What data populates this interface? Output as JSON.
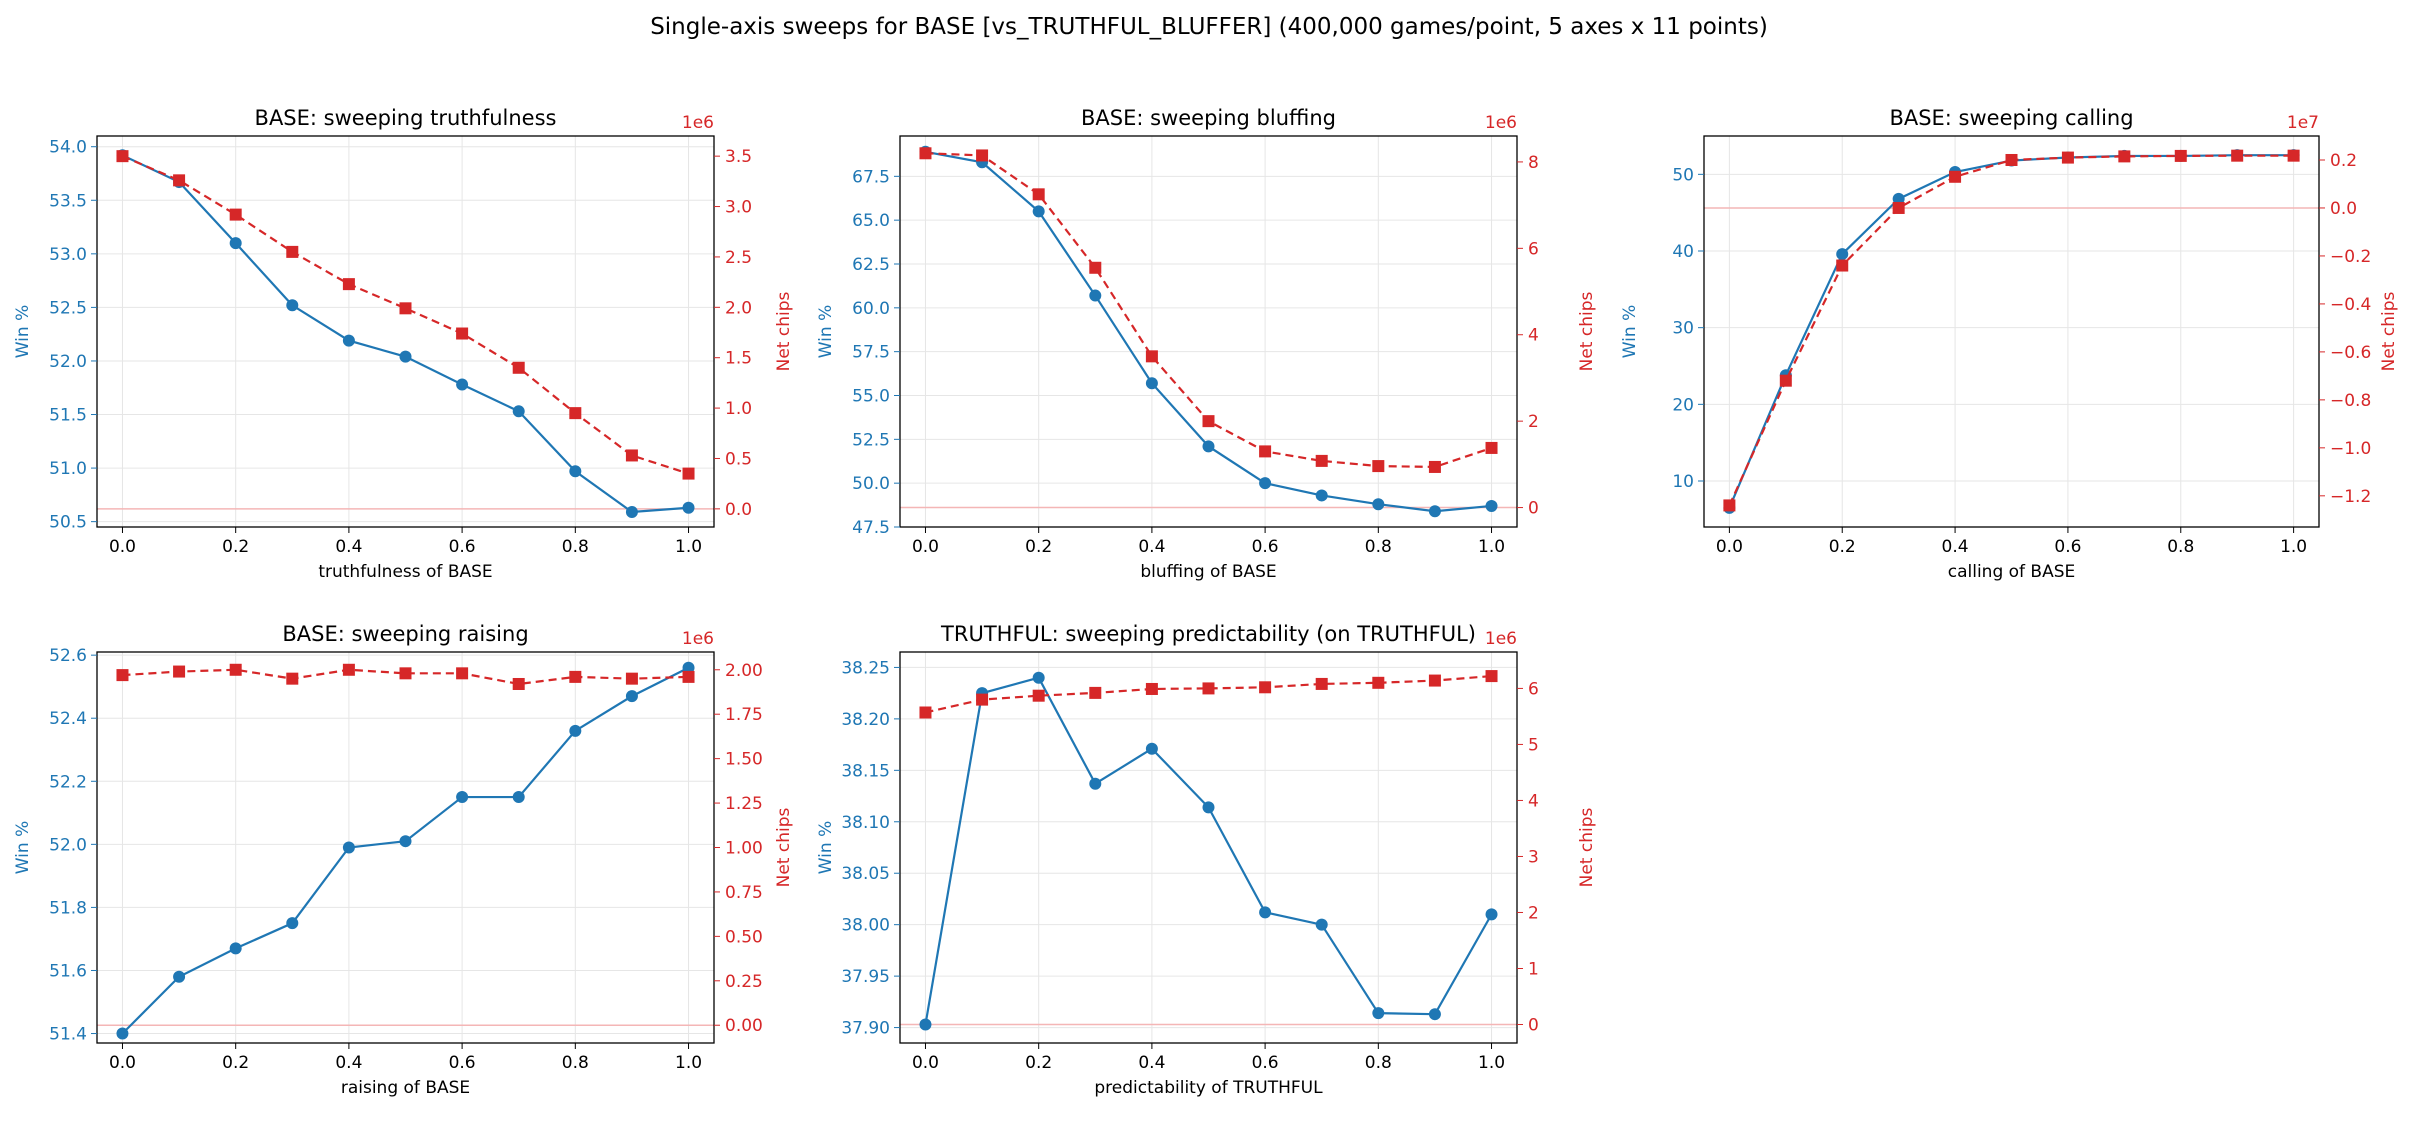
{
  "suptitle": "Single-axis sweeps for BASE  [vs_TRUTHFUL_BLUFFER]  (400,000 games/point, 5 axes x 11 points)",
  "colors": {
    "win": "#1f77b4",
    "chips": "#d62728",
    "zero_line": "#f4b6b6",
    "grid": "#e6e6e6"
  },
  "chart_data": [
    {
      "type": "line",
      "title": "BASE: sweeping truthfulness",
      "xlabel": "truthfulness of BASE",
      "ylabel_left": "Win %",
      "ylabel_right": "Net chips",
      "right_offset": "1e6",
      "x": [
        0.0,
        0.1,
        0.2,
        0.3,
        0.4,
        0.5,
        0.6,
        0.7,
        0.8,
        0.9,
        1.0
      ],
      "x_ticks": [
        "0.0",
        "0.2",
        "0.4",
        "0.6",
        "0.8",
        "1.0"
      ],
      "left_ticks": [
        "50.5",
        "51.0",
        "51.5",
        "52.0",
        "52.5",
        "53.0",
        "53.5",
        "54.0"
      ],
      "right_ticks": [
        "0.0",
        "0.5",
        "1.0",
        "1.5",
        "2.0",
        "2.5",
        "3.0",
        "3.5"
      ],
      "left_range": [
        50.45,
        54.1
      ],
      "right_range": [
        -0.18,
        3.7
      ],
      "series": [
        {
          "axis": "left",
          "style": "solid",
          "marker": "circle",
          "values": [
            53.92,
            53.67,
            53.1,
            52.52,
            52.19,
            52.04,
            51.78,
            51.53,
            50.97,
            50.59,
            50.63
          ]
        },
        {
          "axis": "right",
          "style": "dashed",
          "marker": "square",
          "values": [
            3.5,
            3.26,
            2.92,
            2.55,
            2.23,
            1.99,
            1.74,
            1.4,
            0.95,
            0.53,
            0.35
          ]
        }
      ],
      "zero_line": true
    },
    {
      "type": "line",
      "title": "BASE: sweeping bluffing",
      "xlabel": "bluffing of BASE",
      "ylabel_left": "Win %",
      "ylabel_right": "Net chips",
      "right_offset": "1e6",
      "x": [
        0.0,
        0.1,
        0.2,
        0.3,
        0.4,
        0.5,
        0.6,
        0.7,
        0.8,
        0.9,
        1.0
      ],
      "x_ticks": [
        "0.0",
        "0.2",
        "0.4",
        "0.6",
        "0.8",
        "1.0"
      ],
      "left_ticks": [
        "47.5",
        "50.0",
        "52.5",
        "55.0",
        "57.5",
        "60.0",
        "62.5",
        "65.0",
        "67.5"
      ],
      "right_ticks": [
        "0",
        "2",
        "4",
        "6",
        "8"
      ],
      "left_range": [
        47.5,
        69.8
      ],
      "right_range": [
        -0.45,
        8.6
      ],
      "series": [
        {
          "axis": "left",
          "style": "solid",
          "marker": "circle",
          "values": [
            68.9,
            68.3,
            65.5,
            60.7,
            55.7,
            52.1,
            50.0,
            49.3,
            48.8,
            48.4,
            48.7
          ]
        },
        {
          "axis": "right",
          "style": "dashed",
          "marker": "square",
          "values": [
            8.2,
            8.15,
            7.25,
            5.55,
            3.5,
            2.0,
            1.3,
            1.08,
            0.96,
            0.94,
            1.38
          ]
        }
      ],
      "zero_line": true
    },
    {
      "type": "line",
      "title": "BASE: sweeping calling",
      "xlabel": "calling of BASE",
      "ylabel_left": "Win %",
      "ylabel_right": "Net chips",
      "right_offset": "1e7",
      "x": [
        0.0,
        0.1,
        0.2,
        0.3,
        0.4,
        0.5,
        0.6,
        0.7,
        0.8,
        0.9,
        1.0
      ],
      "x_ticks": [
        "0.0",
        "0.2",
        "0.4",
        "0.6",
        "0.8",
        "1.0"
      ],
      "left_ticks": [
        "10",
        "20",
        "30",
        "40",
        "50"
      ],
      "right_ticks": [
        "−1.2",
        "−1.0",
        "−0.8",
        "−0.6",
        "−0.4",
        "−0.2",
        "0.0",
        "0.2"
      ],
      "right_tick_values": [
        -1.2,
        -1.0,
        -0.8,
        -0.6,
        -0.4,
        -0.2,
        0.0,
        0.2
      ],
      "left_range": [
        4.0,
        55.0
      ],
      "right_range": [
        -1.33,
        0.3
      ],
      "series": [
        {
          "axis": "left",
          "style": "solid",
          "marker": "circle",
          "values": [
            6.5,
            23.8,
            39.6,
            46.8,
            50.3,
            51.8,
            52.2,
            52.4,
            52.4,
            52.5,
            52.5
          ]
        },
        {
          "axis": "right",
          "style": "dashed",
          "marker": "square",
          "values": [
            -1.24,
            -0.72,
            -0.24,
            0.0,
            0.13,
            0.2,
            0.21,
            0.215,
            0.217,
            0.218,
            0.218
          ]
        }
      ],
      "zero_line": true
    },
    {
      "type": "line",
      "title": "BASE: sweeping raising",
      "xlabel": "raising of BASE",
      "ylabel_left": "Win %",
      "ylabel_right": "Net chips",
      "right_offset": "1e6",
      "x": [
        0.0,
        0.1,
        0.2,
        0.3,
        0.4,
        0.5,
        0.6,
        0.7,
        0.8,
        0.9,
        1.0
      ],
      "x_ticks": [
        "0.0",
        "0.2",
        "0.4",
        "0.6",
        "0.8",
        "1.0"
      ],
      "left_ticks": [
        "51.4",
        "51.6",
        "51.8",
        "52.0",
        "52.2",
        "52.4",
        "52.6"
      ],
      "right_ticks": [
        "0.00",
        "0.25",
        "0.50",
        "0.75",
        "1.00",
        "1.25",
        "1.50",
        "1.75",
        "2.00"
      ],
      "left_range": [
        51.37,
        52.61
      ],
      "right_range": [
        -0.1,
        2.1
      ],
      "series": [
        {
          "axis": "left",
          "style": "solid",
          "marker": "circle",
          "values": [
            51.4,
            51.58,
            51.67,
            51.75,
            51.99,
            52.01,
            52.15,
            52.15,
            52.36,
            52.47,
            52.56
          ]
        },
        {
          "axis": "right",
          "style": "dashed",
          "marker": "square",
          "values": [
            1.97,
            1.99,
            2.0,
            1.95,
            2.0,
            1.98,
            1.98,
            1.92,
            1.96,
            1.95,
            1.96
          ]
        }
      ],
      "zero_line": true
    },
    {
      "type": "line",
      "title": "TRUTHFUL: sweeping predictability (on TRUTHFUL)",
      "xlabel": "predictability of TRUTHFUL",
      "ylabel_left": "Win %",
      "ylabel_right": "Net chips",
      "right_offset": "1e6",
      "x": [
        0.0,
        0.1,
        0.2,
        0.3,
        0.4,
        0.5,
        0.6,
        0.7,
        0.8,
        0.9,
        1.0
      ],
      "x_ticks": [
        "0.0",
        "0.2",
        "0.4",
        "0.6",
        "0.8",
        "1.0"
      ],
      "left_ticks": [
        "37.90",
        "37.95",
        "38.00",
        "38.05",
        "38.10",
        "38.15",
        "38.20",
        "38.25"
      ],
      "right_ticks": [
        "0",
        "1",
        "2",
        "3",
        "4",
        "5",
        "6"
      ],
      "left_range": [
        37.885,
        38.265
      ],
      "right_range": [
        -0.33,
        6.65
      ],
      "series": [
        {
          "axis": "left",
          "style": "solid",
          "marker": "circle",
          "values": [
            37.903,
            38.225,
            38.24,
            38.137,
            38.171,
            38.114,
            38.012,
            38.0,
            37.914,
            37.913,
            38.01
          ]
        },
        {
          "axis": "right",
          "style": "dashed",
          "marker": "square",
          "values": [
            5.57,
            5.8,
            5.87,
            5.92,
            5.99,
            6.0,
            6.02,
            6.08,
            6.1,
            6.14,
            6.22
          ]
        }
      ],
      "zero_line": true
    }
  ]
}
